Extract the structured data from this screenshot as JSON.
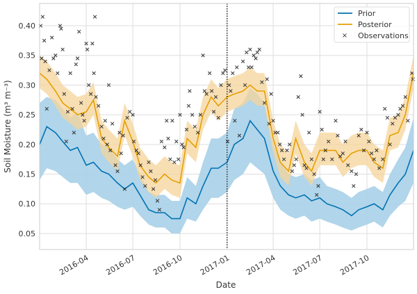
{
  "chart_data": {
    "type": "line",
    "xlabel": "Date",
    "ylabel": "Soil Moisture (m³ m⁻³)",
    "xlim": [
      "2016-01-01",
      "2017-12-31"
    ],
    "ylim": [
      0.023,
      0.4375
    ],
    "grid": true,
    "legend_placement": "top-right",
    "x_ticks": [
      "2016-04",
      "2016-07",
      "2016-10",
      "2017-01",
      "2017-04",
      "2017-07",
      "2017-10"
    ],
    "y_ticks": [
      "0.05",
      "0.10",
      "0.15",
      "0.20",
      "0.25",
      "0.30",
      "0.35",
      "0.40"
    ],
    "vertical_line": {
      "date": "2017-01-01",
      "style": "dotted"
    },
    "colors": {
      "prior": "#0072b2",
      "prior_band": "#a9d0e8",
      "posterior": "#e69f00",
      "posterior_band": "#f5d49a",
      "observations": "#222222"
    },
    "dates": [
      "2016-01-01",
      "2016-01-15",
      "2016-02-01",
      "2016-02-15",
      "2016-03-01",
      "2016-03-15",
      "2016-04-01",
      "2016-04-15",
      "2016-05-01",
      "2016-05-15",
      "2016-06-01",
      "2016-06-15",
      "2016-07-01",
      "2016-07-15",
      "2016-08-01",
      "2016-08-15",
      "2016-09-01",
      "2016-09-15",
      "2016-10-01",
      "2016-10-15",
      "2016-11-01",
      "2016-11-15",
      "2016-12-01",
      "2016-12-15",
      "2017-01-01",
      "2017-01-15",
      "2017-02-01",
      "2017-02-15",
      "2017-03-01",
      "2017-03-15",
      "2017-04-01",
      "2017-04-15",
      "2017-05-01",
      "2017-05-15",
      "2017-06-01",
      "2017-06-15",
      "2017-07-01",
      "2017-07-15",
      "2017-08-01",
      "2017-08-15",
      "2017-09-01",
      "2017-09-15",
      "2017-10-01",
      "2017-10-15",
      "2017-11-01",
      "2017-11-15",
      "2017-12-01",
      "2017-12-15",
      "2017-12-31"
    ],
    "series": [
      {
        "name": "Prior",
        "mean": [
          0.2,
          0.23,
          0.22,
          0.205,
          0.19,
          0.195,
          0.165,
          0.17,
          0.155,
          0.15,
          0.135,
          0.125,
          0.135,
          0.115,
          0.09,
          0.085,
          0.085,
          0.075,
          0.075,
          0.11,
          0.1,
          0.13,
          0.16,
          0.16,
          0.17,
          0.2,
          0.21,
          0.24,
          0.225,
          0.21,
          0.155,
          0.13,
          0.115,
          0.11,
          0.115,
          0.105,
          0.11,
          0.1,
          0.095,
          0.09,
          0.08,
          0.09,
          0.095,
          0.1,
          0.09,
          0.115,
          0.135,
          0.15,
          0.19
        ],
        "lower": [
          0.14,
          0.16,
          0.155,
          0.145,
          0.135,
          0.135,
          0.115,
          0.12,
          0.11,
          0.105,
          0.095,
          0.09,
          0.095,
          0.08,
          0.065,
          0.06,
          0.06,
          0.05,
          0.05,
          0.075,
          0.07,
          0.09,
          0.11,
          0.11,
          0.12,
          0.14,
          0.15,
          0.17,
          0.16,
          0.15,
          0.11,
          0.09,
          0.08,
          0.075,
          0.08,
          0.07,
          0.075,
          0.07,
          0.065,
          0.06,
          0.055,
          0.06,
          0.065,
          0.07,
          0.06,
          0.08,
          0.095,
          0.105,
          0.135
        ],
        "upper": [
          0.27,
          0.28,
          0.275,
          0.26,
          0.245,
          0.255,
          0.215,
          0.22,
          0.2,
          0.195,
          0.175,
          0.165,
          0.175,
          0.15,
          0.12,
          0.115,
          0.115,
          0.105,
          0.105,
          0.145,
          0.13,
          0.17,
          0.21,
          0.21,
          0.22,
          0.26,
          0.27,
          0.295,
          0.285,
          0.27,
          0.2,
          0.17,
          0.15,
          0.145,
          0.15,
          0.14,
          0.145,
          0.13,
          0.125,
          0.12,
          0.11,
          0.12,
          0.125,
          0.13,
          0.12,
          0.15,
          0.175,
          0.195,
          0.245
        ]
      },
      {
        "name": "Posterior",
        "mean": [
          0.32,
          0.31,
          0.29,
          0.27,
          0.26,
          0.25,
          0.255,
          0.275,
          0.21,
          0.195,
          0.18,
          0.24,
          0.205,
          0.165,
          0.145,
          0.135,
          0.15,
          0.14,
          0.135,
          0.21,
          0.195,
          0.25,
          0.28,
          0.265,
          0.28,
          0.285,
          0.29,
          0.3,
          0.29,
          0.29,
          0.21,
          0.17,
          0.155,
          0.21,
          0.17,
          0.155,
          0.19,
          0.19,
          0.19,
          0.17,
          0.185,
          0.19,
          0.19,
          0.17,
          0.16,
          0.215,
          0.22,
          0.25,
          0.32
        ],
        "lower": [
          0.295,
          0.285,
          0.265,
          0.245,
          0.235,
          0.225,
          0.23,
          0.25,
          0.185,
          0.17,
          0.155,
          0.215,
          0.18,
          0.14,
          0.12,
          0.11,
          0.125,
          0.115,
          0.11,
          0.185,
          0.17,
          0.225,
          0.255,
          0.24,
          0.255,
          0.26,
          0.265,
          0.275,
          0.265,
          0.265,
          0.185,
          0.145,
          0.13,
          0.185,
          0.145,
          0.13,
          0.165,
          0.165,
          0.165,
          0.145,
          0.16,
          0.165,
          0.165,
          0.145,
          0.135,
          0.19,
          0.195,
          0.225,
          0.295
        ],
        "upper": [
          0.35,
          0.34,
          0.32,
          0.3,
          0.29,
          0.28,
          0.285,
          0.305,
          0.24,
          0.225,
          0.21,
          0.27,
          0.235,
          0.195,
          0.175,
          0.165,
          0.18,
          0.17,
          0.165,
          0.24,
          0.225,
          0.28,
          0.31,
          0.295,
          0.31,
          0.315,
          0.32,
          0.33,
          0.32,
          0.32,
          0.24,
          0.2,
          0.185,
          0.24,
          0.2,
          0.185,
          0.22,
          0.22,
          0.22,
          0.2,
          0.215,
          0.22,
          0.22,
          0.2,
          0.19,
          0.245,
          0.25,
          0.28,
          0.35
        ]
      }
    ],
    "observations": {
      "name": "Observations",
      "points": [
        [
          "2016-01-03",
          0.4
        ],
        [
          "2016-01-05",
          0.345
        ],
        [
          "2016-01-07",
          0.415
        ],
        [
          "2016-01-10",
          0.375
        ],
        [
          "2016-01-12",
          0.34
        ],
        [
          "2016-01-15",
          0.26
        ],
        [
          "2016-01-20",
          0.325
        ],
        [
          "2016-01-25",
          0.38
        ],
        [
          "2016-01-28",
          0.345
        ],
        [
          "2016-02-01",
          0.35
        ],
        [
          "2016-02-05",
          0.32
        ],
        [
          "2016-02-10",
          0.4
        ],
        [
          "2016-02-12",
          0.395
        ],
        [
          "2016-02-15",
          0.36
        ],
        [
          "2016-02-18",
          0.285
        ],
        [
          "2016-02-22",
          0.205
        ],
        [
          "2016-02-25",
          0.255
        ],
        [
          "2016-03-01",
          0.32
        ],
        [
          "2016-03-05",
          0.26
        ],
        [
          "2016-03-08",
          0.22
        ],
        [
          "2016-03-12",
          0.335
        ],
        [
          "2016-03-15",
          0.345
        ],
        [
          "2016-03-18",
          0.39
        ],
        [
          "2016-03-22",
          0.27
        ],
        [
          "2016-03-25",
          0.25
        ],
        [
          "2016-03-28",
          0.24
        ],
        [
          "2016-04-01",
          0.37
        ],
        [
          "2016-04-03",
          0.36
        ],
        [
          "2016-04-06",
          0.3
        ],
        [
          "2016-04-10",
          0.285
        ],
        [
          "2016-04-13",
          0.37
        ],
        [
          "2016-04-16",
          0.32
        ],
        [
          "2016-04-18",
          0.415
        ],
        [
          "2016-04-20",
          0.28
        ],
        [
          "2016-04-25",
          0.265
        ],
        [
          "2016-05-01",
          0.23
        ],
        [
          "2016-05-05",
          0.21
        ],
        [
          "2016-05-08",
          0.24
        ],
        [
          "2016-05-12",
          0.2
        ],
        [
          "2016-05-15",
          0.3
        ],
        [
          "2016-05-18",
          0.19
        ],
        [
          "2016-05-22",
          0.235
        ],
        [
          "2016-05-28",
          0.165
        ],
        [
          "2016-06-01",
          0.155
        ],
        [
          "2016-06-05",
          0.22
        ],
        [
          "2016-06-08",
          0.185
        ],
        [
          "2016-06-12",
          0.215
        ],
        [
          "2016-06-15",
          0.125
        ],
        [
          "2016-06-20",
          0.245
        ],
        [
          "2016-06-25",
          0.255
        ],
        [
          "2016-07-01",
          0.25
        ],
        [
          "2016-07-03",
          0.205
        ],
        [
          "2016-07-08",
          0.19
        ],
        [
          "2016-07-12",
          0.185
        ],
        [
          "2016-07-16",
          0.165
        ],
        [
          "2016-07-20",
          0.145
        ],
        [
          "2016-07-25",
          0.13
        ],
        [
          "2016-08-01",
          0.17
        ],
        [
          "2016-08-05",
          0.155
        ],
        [
          "2016-08-10",
          0.125
        ],
        [
          "2016-08-14",
          0.14
        ],
        [
          "2016-08-18",
          0.105
        ],
        [
          "2016-08-22",
          0.09
        ],
        [
          "2016-08-26",
          0.205
        ],
        [
          "2016-09-01",
          0.195
        ],
        [
          "2016-09-05",
          0.24
        ],
        [
          "2016-09-08",
          0.21
        ],
        [
          "2016-09-12",
          0.175
        ],
        [
          "2016-09-16",
          0.24
        ],
        [
          "2016-09-20",
          0.17
        ],
        [
          "2016-09-24",
          0.205
        ],
        [
          "2016-09-28",
          0.175
        ],
        [
          "2016-10-01",
          0.25
        ],
        [
          "2016-10-05",
          0.2
        ],
        [
          "2016-10-08",
          0.195
        ],
        [
          "2016-10-14",
          0.225
        ],
        [
          "2016-10-18",
          0.265
        ],
        [
          "2016-10-20",
          0.29
        ],
        [
          "2016-10-25",
          0.25
        ],
        [
          "2016-10-30",
          0.23
        ],
        [
          "2016-11-05",
          0.22
        ],
        [
          "2016-11-10",
          0.25
        ],
        [
          "2016-11-15",
          0.35
        ],
        [
          "2016-11-18",
          0.29
        ],
        [
          "2016-11-22",
          0.285
        ],
        [
          "2016-11-28",
          0.32
        ],
        [
          "2016-12-02",
          0.29
        ],
        [
          "2016-12-06",
          0.255
        ],
        [
          "2016-12-10",
          0.28
        ],
        [
          "2016-12-15",
          0.245
        ],
        [
          "2016-12-20",
          0.3
        ],
        [
          "2016-12-24",
          0.32
        ],
        [
          "2016-12-28",
          0.325
        ],
        [
          "2017-01-02",
          0.205
        ],
        [
          "2017-01-05",
          0.3
        ],
        [
          "2017-01-08",
          0.29
        ],
        [
          "2017-01-12",
          0.32
        ],
        [
          "2017-01-16",
          0.24
        ],
        [
          "2017-01-20",
          0.33
        ],
        [
          "2017-01-25",
          0.215
        ],
        [
          "2017-02-01",
          0.34
        ],
        [
          "2017-02-05",
          0.3
        ],
        [
          "2017-02-08",
          0.355
        ],
        [
          "2017-02-12",
          0.33
        ],
        [
          "2017-02-15",
          0.36
        ],
        [
          "2017-02-18",
          0.33
        ],
        [
          "2017-02-22",
          0.35
        ],
        [
          "2017-02-26",
          0.345
        ],
        [
          "2017-03-01",
          0.355
        ],
        [
          "2017-03-05",
          0.36
        ],
        [
          "2017-03-10",
          0.305
        ],
        [
          "2017-03-15",
          0.27
        ],
        [
          "2017-03-20",
          0.31
        ],
        [
          "2017-03-24",
          0.235
        ],
        [
          "2017-03-28",
          0.285
        ],
        [
          "2017-04-01",
          0.24
        ],
        [
          "2017-04-05",
          0.22
        ],
        [
          "2017-04-10",
          0.22
        ],
        [
          "2017-04-14",
          0.2
        ],
        [
          "2017-04-18",
          0.19
        ],
        [
          "2017-04-22",
          0.175
        ],
        [
          "2017-04-28",
          0.19
        ],
        [
          "2017-05-03",
          0.2
        ],
        [
          "2017-05-08",
          0.155
        ],
        [
          "2017-05-12",
          0.165
        ],
        [
          "2017-05-16",
          0.175
        ],
        [
          "2017-05-20",
          0.28
        ],
        [
          "2017-05-25",
          0.315
        ],
        [
          "2017-05-28",
          0.25
        ],
        [
          "2017-06-01",
          0.165
        ],
        [
          "2017-06-05",
          0.16
        ],
        [
          "2017-06-10",
          0.22
        ],
        [
          "2017-06-15",
          0.175
        ],
        [
          "2017-06-20",
          0.15
        ],
        [
          "2017-06-25",
          0.115
        ],
        [
          "2017-06-28",
          0.13
        ],
        [
          "2017-07-01",
          0.255
        ],
        [
          "2017-07-05",
          0.225
        ],
        [
          "2017-07-08",
          0.175
        ],
        [
          "2017-07-12",
          0.19
        ],
        [
          "2017-07-18",
          0.205
        ],
        [
          "2017-07-25",
          0.175
        ],
        [
          "2017-08-01",
          0.24
        ],
        [
          "2017-08-05",
          0.215
        ],
        [
          "2017-08-10",
          0.18
        ],
        [
          "2017-08-15",
          0.185
        ],
        [
          "2017-08-20",
          0.205
        ],
        [
          "2017-08-25",
          0.165
        ],
        [
          "2017-09-01",
          0.155
        ],
        [
          "2017-09-05",
          0.13
        ],
        [
          "2017-09-10",
          0.15
        ],
        [
          "2017-09-15",
          0.215
        ],
        [
          "2017-09-20",
          0.225
        ],
        [
          "2017-09-25",
          0.19
        ],
        [
          "2017-10-01",
          0.22
        ],
        [
          "2017-10-05",
          0.205
        ],
        [
          "2017-10-10",
          0.185
        ],
        [
          "2017-10-15",
          0.175
        ],
        [
          "2017-10-20",
          0.19
        ],
        [
          "2017-10-25",
          0.16
        ],
        [
          "2017-11-01",
          0.175
        ],
        [
          "2017-11-05",
          0.26
        ],
        [
          "2017-11-10",
          0.245
        ],
        [
          "2017-11-15",
          0.2
        ],
        [
          "2017-11-20",
          0.235
        ],
        [
          "2017-11-25",
          0.245
        ],
        [
          "2017-12-01",
          0.25
        ],
        [
          "2017-12-05",
          0.26
        ],
        [
          "2017-12-10",
          0.265
        ],
        [
          "2017-12-15",
          0.28
        ],
        [
          "2017-12-20",
          0.24
        ],
        [
          "2017-12-28",
          0.32
        ],
        [
          "2017-12-30",
          0.31
        ]
      ]
    }
  }
}
